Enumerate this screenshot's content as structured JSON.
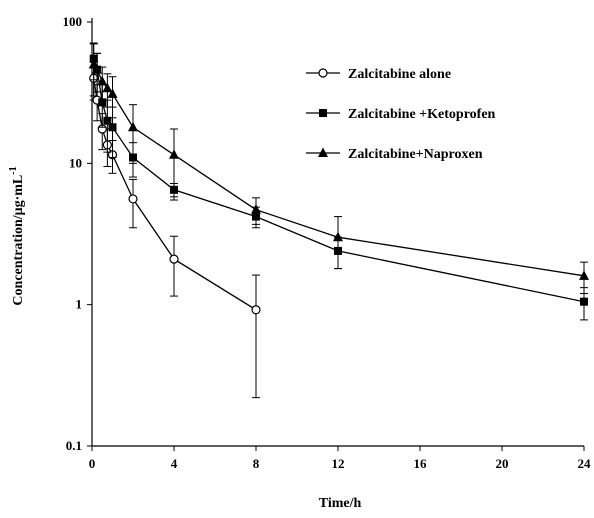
{
  "chart_data": {
    "type": "line",
    "title": "",
    "xlabel": "Time/h",
    "ylabel": "Concentration/μg·mL",
    "ylabel_superscript": "-1",
    "xlim": [
      0,
      24
    ],
    "ylim": [
      0.1,
      100
    ],
    "yscale": "log",
    "x_ticks": [
      0,
      4,
      8,
      12,
      16,
      20,
      24
    ],
    "x_tick_labels": [
      "0",
      "4",
      "8",
      "12",
      "16",
      "20",
      "24"
    ],
    "y_ticks": [
      0.1,
      1,
      10,
      100
    ],
    "y_tick_labels": [
      "0.1",
      "1",
      "10",
      "100"
    ],
    "grid": false,
    "legend_position": "top-right",
    "series": [
      {
        "name": "Zalcitabine alone",
        "marker": "open-circle",
        "color": "#000000",
        "x": [
          0.083,
          0.25,
          0.5,
          0.75,
          1,
          2,
          4,
          8
        ],
        "y": [
          40,
          28,
          17.5,
          13.5,
          11.5,
          5.6,
          2.1,
          0.92
        ],
        "error": [
          12,
          8,
          5,
          4,
          3,
          2.1,
          0.95,
          0.7
        ]
      },
      {
        "name": "Zalcitabine +Ketoprofen",
        "marker": "filled-square",
        "color": "#000000",
        "x": [
          0.083,
          0.25,
          0.5,
          0.75,
          1,
          2,
          4,
          8,
          12,
          24
        ],
        "y": [
          55,
          46,
          27,
          20,
          18,
          11,
          6.5,
          4.2,
          2.4,
          1.05
        ],
        "error": [
          16,
          14,
          9,
          8,
          7,
          3,
          0.7,
          0.7,
          0.6,
          0.27
        ]
      },
      {
        "name": "Zalcitabine+Naproxen",
        "marker": "filled-triangle",
        "color": "#000000",
        "x": [
          0.083,
          0.25,
          0.5,
          0.75,
          1,
          2,
          4,
          8,
          12,
          24
        ],
        "y": [
          50,
          46,
          38,
          34,
          31,
          18,
          11.5,
          4.7,
          3.0,
          1.6
        ],
        "error": [
          20,
          14,
          10,
          9,
          10,
          8,
          6,
          1.0,
          1.2,
          0.4
        ]
      }
    ]
  }
}
